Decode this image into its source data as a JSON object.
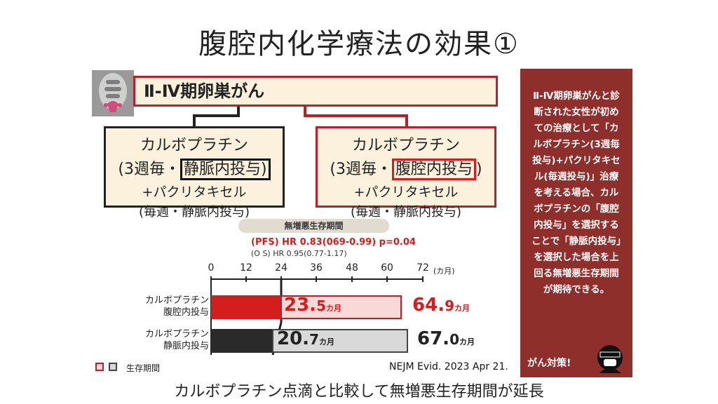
{
  "title": "腹腔内化学療法の効果①",
  "header": {
    "label": "Ⅱ-Ⅳ期卵巣がん"
  },
  "arms": {
    "left": {
      "line1": "カルボプラチン",
      "line2_prefix": "(3週毎・",
      "line2_highlight": "静脈内投与)",
      "line3": "+パクリタキセル",
      "line4": "(毎週・静脈内投与)"
    },
    "right": {
      "line1": "カルボプラチン",
      "line2_prefix": "(3週毎・",
      "line2_highlight": "腹腔内投与",
      "line2_suffix": ")",
      "line3": "+パクリタキセル",
      "line4": "(毎週・静脈内投与)"
    }
  },
  "pill_label": "無増悪生存期間",
  "stats": {
    "pfs": "(PFS) HR 0.83(069-0.99) p=0.04",
    "os": "(O S) HR 0.95(0.77-1.17)"
  },
  "chart_data": {
    "type": "bar",
    "x_ticks": [
      "0",
      "12",
      "24",
      "36",
      "48",
      "60",
      "72"
    ],
    "x_unit": "(カ月)",
    "xlim": [
      0,
      72
    ],
    "categories": [
      {
        "line1": "カルボプラチン",
        "line2": "腹腔内投与"
      },
      {
        "line1": "カルボプラチン",
        "line2": "静脈内投与"
      }
    ],
    "series": [
      {
        "name": "無増悪生存期間",
        "values": [
          23.5,
          20.7
        ]
      },
      {
        "name": "生存期間",
        "values": [
          64.9,
          67.0
        ]
      }
    ],
    "labels": {
      "pfs_ip_main": "23.",
      "pfs_ip_dec": "5",
      "pfs_ip_unit": "カ月",
      "os_ip_main": "64.",
      "os_ip_dec": "9",
      "os_ip_unit": "カ月",
      "pfs_iv_main": "20.",
      "pfs_iv_dec": "7",
      "pfs_iv_unit": "カ月",
      "os_iv_main": "67.",
      "os_iv_dec": "0",
      "os_iv_unit": "カ月"
    },
    "colors": {
      "ip": "#d41e1e",
      "iv": "#2a2a2a"
    },
    "legend_label": "生存期間"
  },
  "source": "NEJM Evid. 2023 Apr 21.",
  "caption": "カルボプラチン点滴と比較して無増悪生存期間が延長",
  "side_panel": {
    "text": "Ⅱ-Ⅳ期卵巣がんと診断された女性が初めての治療として「カルボプラチン(3週毎投与)+パクリタキセル(毎週投与)」治療を考える場合、カルボプラチンの「腹腔内投与」を選択することで「静脈内投与」を選択した場合を上回る無増悪生存期間が期待できる。",
    "footer": "がん対策!",
    "bg_color": "#8f2f2c"
  }
}
